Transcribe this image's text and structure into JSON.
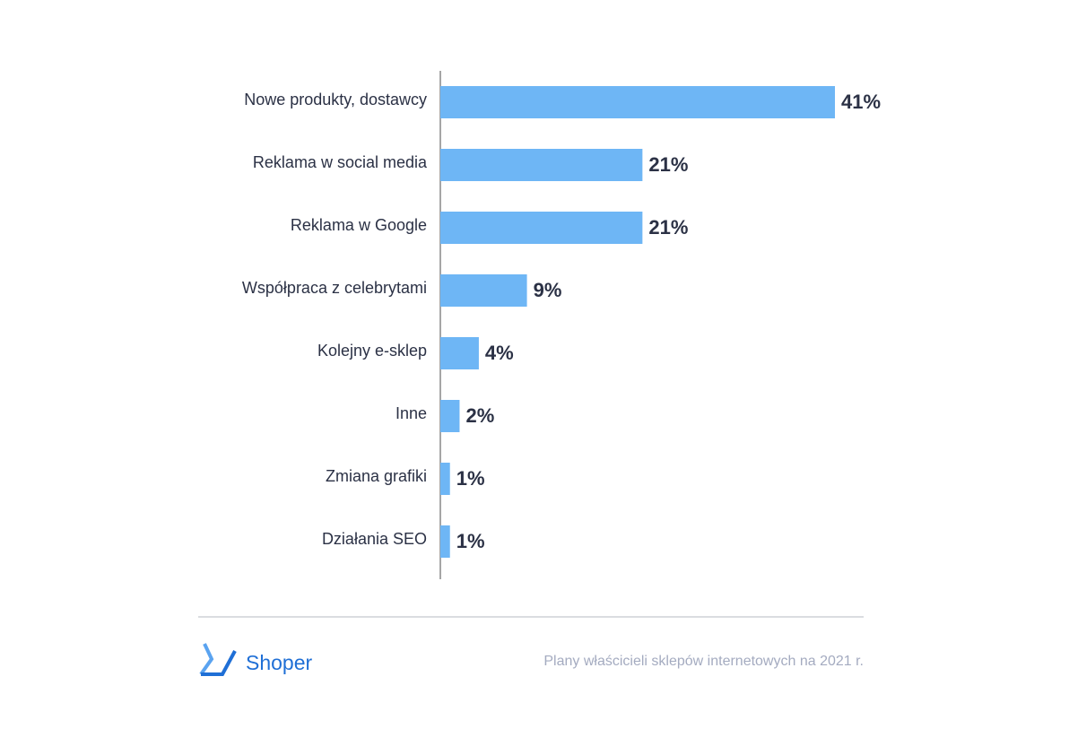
{
  "chart_data": {
    "type": "bar",
    "orientation": "horizontal",
    "categories": [
      "Nowe produkty, dostawcy",
      "Reklama w social media",
      "Reklama w Google",
      "Współpraca z celebrytami",
      "Kolejny e-sklep",
      "Inne",
      "Zmiana grafiki",
      "Działania SEO"
    ],
    "values": [
      41,
      21,
      21,
      9,
      4,
      2,
      1,
      1
    ],
    "value_labels": [
      "41%",
      "21%",
      "21%",
      "9%",
      "4%",
      "2%",
      "1%",
      "1%"
    ],
    "color": "#6eb6f5"
  },
  "footer": {
    "logo": "Shoper",
    "source": "Plany właścicieli sklepów internetowych na 2021 r."
  }
}
